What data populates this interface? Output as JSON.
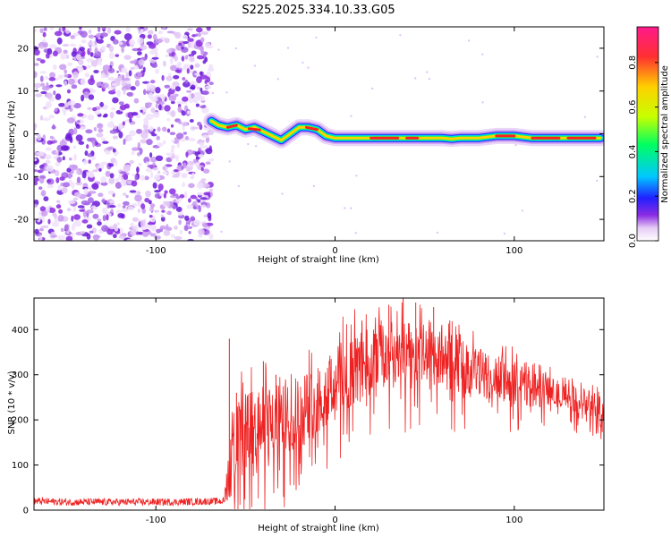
{
  "figure_title": "S225.2025.334.10.33.G05",
  "colorbar": {
    "label": "Normalized spectral amplitude",
    "ticks": [
      0.0,
      0.2,
      0.4,
      0.6,
      0.8
    ],
    "tick_labels": [
      "0.0",
      "0.2",
      "0.4",
      "0.6",
      "0.8"
    ],
    "range": [
      0,
      0.96
    ],
    "colors": [
      "#ffffff",
      "#e6ccf5",
      "#8a2be2",
      "#2020ff",
      "#00c8ff",
      "#00ff60",
      "#c8ff00",
      "#ffd000",
      "#ff3030",
      "#ff1a8c"
    ]
  },
  "chart_data": [
    {
      "type": "heatmap",
      "title": "S225.2025.334.10.33.G05",
      "xlabel": "Height of straight line (km)",
      "ylabel": "Frequency (Hz)",
      "xlim": [
        -168,
        150
      ],
      "ylim": [
        -25,
        25
      ],
      "x_ticks": [
        -100,
        0,
        100
      ],
      "x_tick_labels": [
        "-100",
        "0",
        "100"
      ],
      "y_ticks": [
        -20,
        -10,
        0,
        10,
        20
      ],
      "y_tick_labels": [
        "-20",
        "-10",
        "0",
        "10",
        "20"
      ],
      "noise_region_x": [
        -168,
        -69
      ],
      "ridge": {
        "x": [
          -69,
          -65,
          -60,
          -55,
          -50,
          -45,
          -40,
          -35,
          -30,
          -25,
          -20,
          -15,
          -10,
          -5,
          0,
          5,
          10,
          20,
          30,
          40,
          50,
          60,
          65,
          70,
          75,
          80,
          90,
          100,
          110,
          120,
          130,
          140,
          148
        ],
        "freq": [
          3,
          2,
          1.5,
          2,
          1,
          1.5,
          0.5,
          -0.5,
          -1.5,
          0,
          1.5,
          1.5,
          1,
          -0.5,
          -1,
          -1,
          -1,
          -1,
          -1,
          -1,
          -1,
          -1,
          -1.2,
          -1,
          -1,
          -1,
          -0.5,
          -0.5,
          -1,
          -1,
          -1,
          -1,
          -1
        ]
      },
      "colormap": "rainbow"
    },
    {
      "type": "line",
      "xlabel": "Height of straight line (km)",
      "ylabel": "SNR (10 * v/v)",
      "xlim": [
        -168,
        150
      ],
      "ylim": [
        0,
        470
      ],
      "x_ticks": [
        -100,
        0,
        100
      ],
      "x_tick_labels": [
        "-100",
        "0",
        "100"
      ],
      "y_ticks": [
        0,
        100,
        200,
        300,
        400
      ],
      "y_tick_labels": [
        "0",
        "100",
        "200",
        "300",
        "400"
      ],
      "series": [
        {
          "name": "SNR",
          "color": "#ee2222",
          "envelope_x": [
            -168,
            -150,
            -120,
            -90,
            -62,
            -58,
            -55,
            -50,
            -45,
            -40,
            -30,
            -20,
            -10,
            0,
            10,
            20,
            30,
            40,
            50,
            60,
            70,
            80,
            90,
            100,
            110,
            120,
            130,
            140,
            150
          ],
          "envelope_mean": [
            20,
            18,
            18,
            18,
            20,
            120,
            150,
            170,
            180,
            190,
            200,
            215,
            245,
            285,
            310,
            325,
            340,
            345,
            345,
            340,
            320,
            305,
            295,
            285,
            270,
            260,
            250,
            240,
            225
          ],
          "envelope_spread": [
            8,
            8,
            8,
            8,
            8,
            90,
            90,
            90,
            85,
            85,
            80,
            80,
            80,
            80,
            80,
            80,
            75,
            70,
            70,
            65,
            60,
            55,
            50,
            45,
            40,
            35,
            30,
            30,
            30
          ],
          "spikes": [
            [
              -59,
              380
            ],
            [
              -55,
              260
            ],
            [
              -49,
              250
            ],
            [
              -40,
              330
            ],
            [
              -33,
              300
            ],
            [
              15,
              420
            ],
            [
              30,
              455
            ],
            [
              38,
              470
            ],
            [
              45,
              460
            ],
            [
              55,
              450
            ],
            [
              64,
              420
            ]
          ]
        }
      ]
    }
  ]
}
